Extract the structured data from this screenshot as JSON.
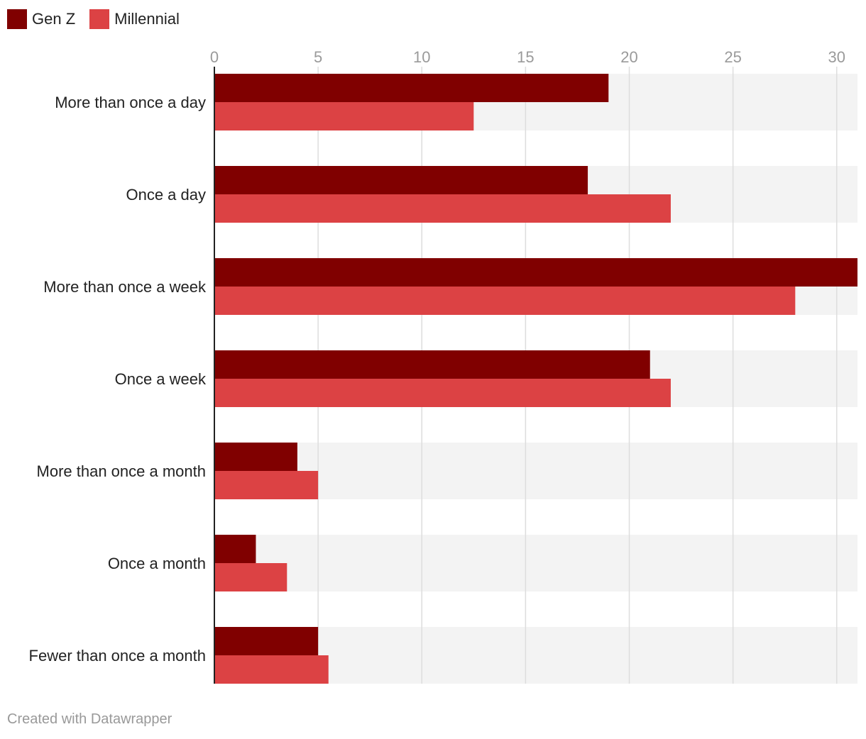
{
  "chart_data": {
    "type": "bar",
    "orientation": "horizontal",
    "categories": [
      "More than once a day",
      "Once a day",
      "More than once a week",
      "Once a week",
      "More than once a month",
      "Once a month",
      "Fewer than once a month"
    ],
    "series": [
      {
        "name": "Gen Z",
        "color": "#800000",
        "values": [
          19,
          18,
          31,
          21,
          4,
          2,
          5
        ]
      },
      {
        "name": "Millennial",
        "color": "#dc4244",
        "values": [
          12.5,
          22,
          28,
          22,
          5,
          3.5,
          5.5
        ]
      }
    ],
    "xlim": [
      0,
      31
    ],
    "xticks": [
      0,
      5,
      10,
      15,
      20,
      25,
      30
    ],
    "grid": true,
    "legend_position": "top-left",
    "title": "",
    "xlabel": "",
    "ylabel": ""
  },
  "footer": "Created with Datawrapper"
}
